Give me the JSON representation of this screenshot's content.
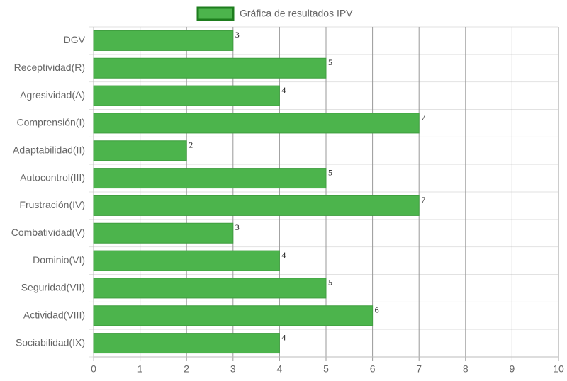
{
  "chart_data": {
    "type": "bar",
    "orientation": "horizontal",
    "categories": [
      "DGV",
      "Receptividad(R)",
      "Agresividad(A)",
      "Comprensión(I)",
      "Adaptabilidad(II)",
      "Autocontrol(III)",
      "Frustración(IV)",
      "Combatividad(V)",
      "Dominio(VI)",
      "Seguridad(VII)",
      "Actividad(VIII)",
      "Sociabilidad(IX)"
    ],
    "series": [
      {
        "name": "Gráfica de resultados IPV",
        "color": "#4cb44c",
        "values": [
          3,
          5,
          4,
          7,
          2,
          5,
          7,
          3,
          4,
          5,
          6,
          4
        ]
      }
    ],
    "xlim": [
      0,
      10
    ],
    "xticks": [
      0,
      1,
      2,
      3,
      4,
      5,
      6,
      7,
      8,
      9,
      10
    ],
    "grid": true,
    "legend": "top"
  }
}
